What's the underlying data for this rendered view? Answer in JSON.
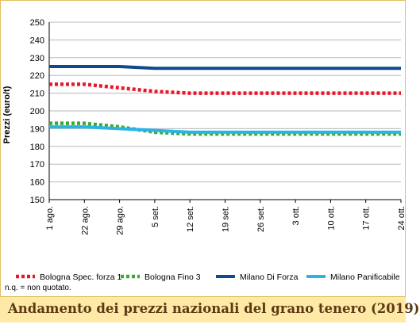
{
  "chart_data": {
    "type": "line",
    "title": "Andamento dei prezzi nazionali del grano tenero (2019)",
    "ylabel": "Prezzi (euro/t)",
    "xlabel": "",
    "ylim": [
      150,
      250
    ],
    "ystep": 10,
    "grid": "horizontal",
    "legend_position": "bottom",
    "x": [
      "1 ago.",
      "22 ago.",
      "29 ago.",
      "5 set.",
      "12 set.",
      "19 set.",
      "26 set.",
      "3 ott.",
      "10 ott.",
      "17 ott.",
      "24 ott."
    ],
    "series": [
      {
        "name": "Bologna Spec. forza 1",
        "color": "#e8182c",
        "style": "dotted",
        "values": [
          215,
          215,
          213,
          211,
          210,
          210,
          210,
          210,
          210,
          210,
          210
        ]
      },
      {
        "name": "Bologna Fino 3",
        "color": "#3aa935",
        "style": "dotted",
        "values": [
          193,
          193,
          191,
          188,
          187,
          187,
          187,
          187,
          187,
          187,
          187
        ]
      },
      {
        "name": "Milano Di Forza",
        "color": "#0f4b8c",
        "style": "solid",
        "values": [
          225,
          225,
          225,
          224,
          224,
          224,
          224,
          224,
          224,
          224,
          224
        ]
      },
      {
        "name": "Milano Panificabile",
        "color": "#27b5e6",
        "style": "solid",
        "values": [
          191,
          191,
          190,
          189,
          188,
          188,
          188,
          188,
          188,
          188,
          188
        ]
      }
    ]
  },
  "note": "n.q. = non quotato."
}
